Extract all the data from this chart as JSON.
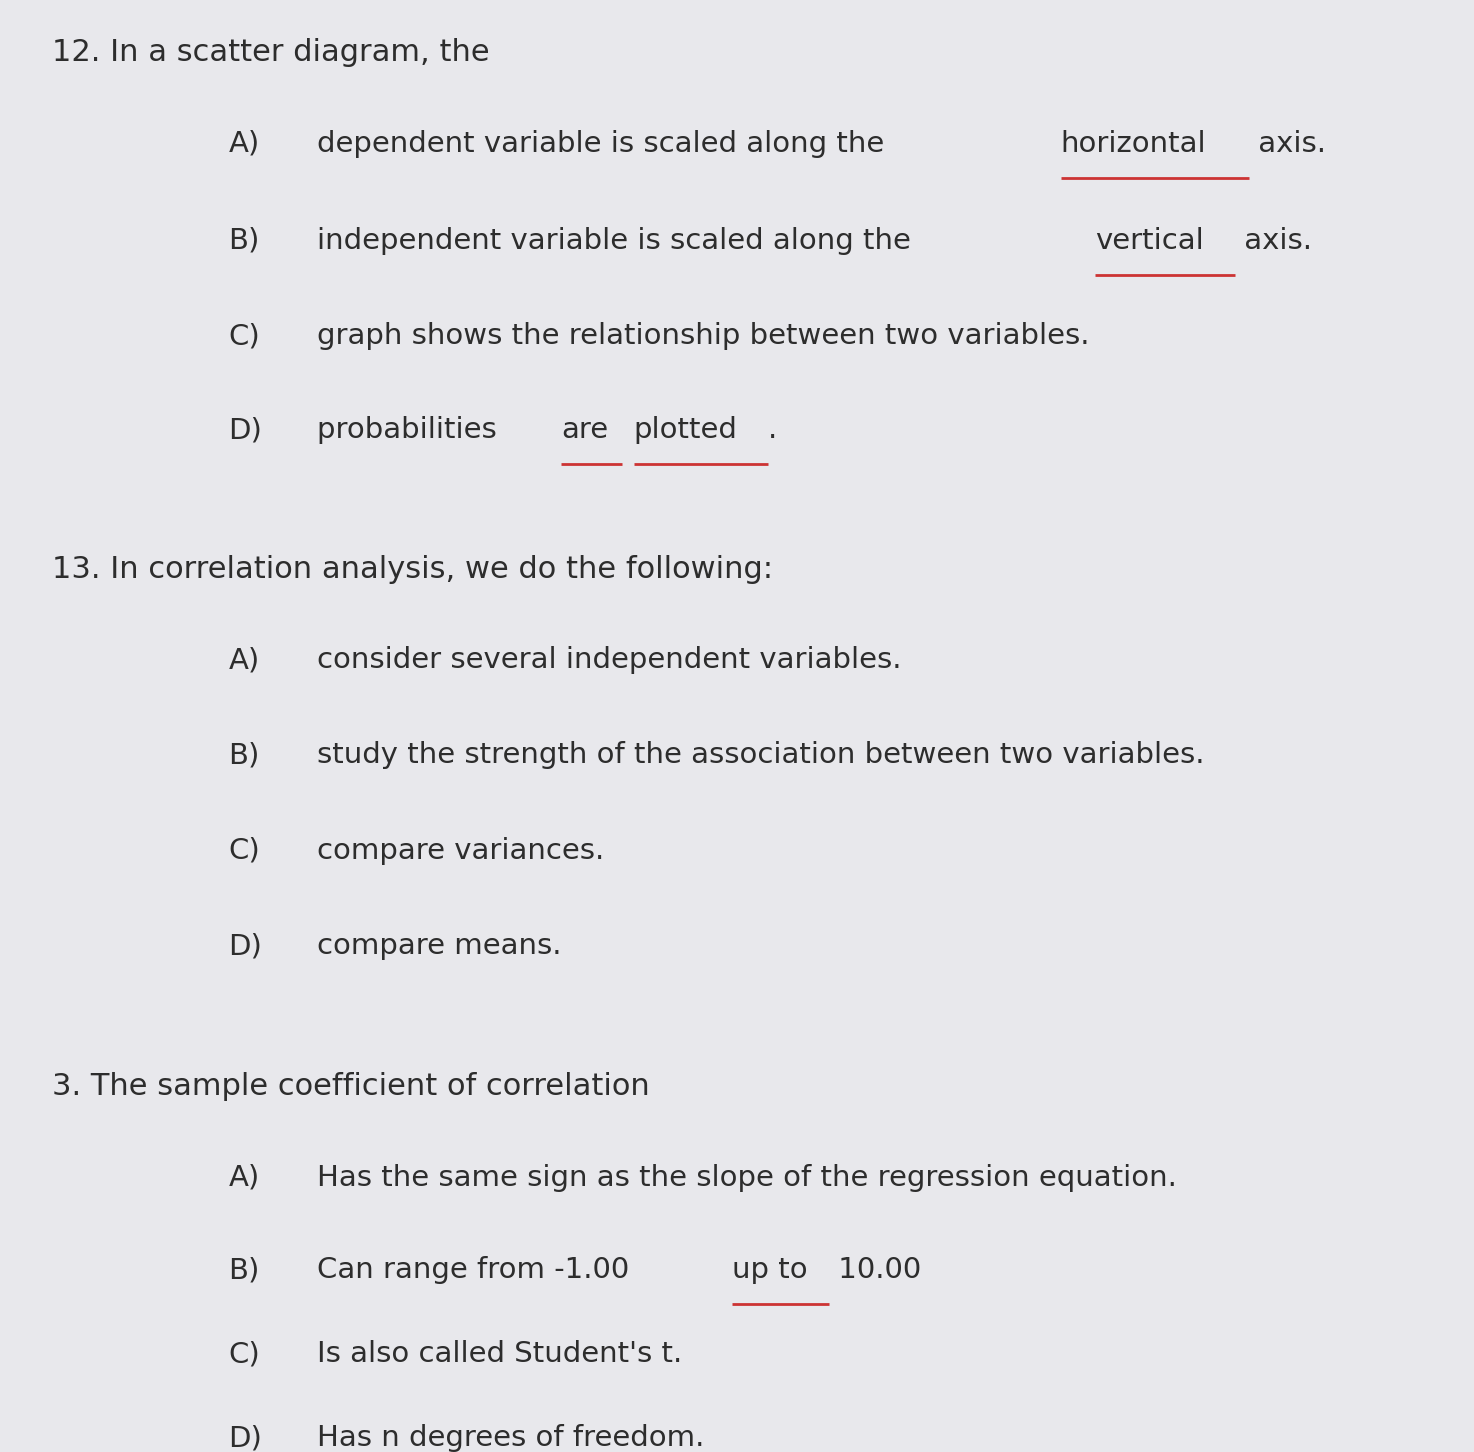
{
  "background_color": "#e8e8ec",
  "text_color": "#2d2d2d",
  "underline_color": "#cc3333",
  "font_size_question": 22,
  "font_size_option": 21,
  "questions": [
    {
      "number": "12.",
      "stem": " In a scatter diagram, the",
      "options": [
        {
          "letter": "A)",
          "parts": [
            {
              "text": "dependent variable is scaled along the ",
              "underline": false
            },
            {
              "text": "horizontal",
              "underline": true
            },
            {
              "text": " axis.",
              "underline": false
            }
          ]
        },
        {
          "letter": "B)",
          "parts": [
            {
              "text": "independent variable is scaled along the ",
              "underline": false
            },
            {
              "text": "vertical",
              "underline": true
            },
            {
              "text": " axis.",
              "underline": false
            }
          ]
        },
        {
          "letter": "C)",
          "parts": [
            {
              "text": "graph shows the relationship between two variables.",
              "underline": false
            }
          ]
        },
        {
          "letter": "D)",
          "parts": [
            {
              "text": "probabilities ",
              "underline": false
            },
            {
              "text": "are",
              "underline": true
            },
            {
              "text": " ",
              "underline": false
            },
            {
              "text": "plotted",
              "underline": true
            },
            {
              "text": ".",
              "underline": false
            }
          ]
        }
      ]
    },
    {
      "number": "13.",
      "stem": " In correlation analysis, we do the following:",
      "options": [
        {
          "letter": "A)",
          "parts": [
            {
              "text": "consider several independent variables.",
              "underline": false
            }
          ]
        },
        {
          "letter": "B)",
          "parts": [
            {
              "text": "study the strength of the association between two variables.",
              "underline": false
            }
          ]
        },
        {
          "letter": "C)",
          "parts": [
            {
              "text": "compare variances.",
              "underline": false
            }
          ]
        },
        {
          "letter": "D)",
          "parts": [
            {
              "text": "compare means.",
              "underline": false
            }
          ]
        }
      ]
    },
    {
      "number": "3.",
      "stem": " The sample coefficient of correlation",
      "options": [
        {
          "letter": "A)",
          "parts": [
            {
              "text": "Has the same sign as the slope of the regression equation.",
              "underline": false
            }
          ]
        },
        {
          "letter": "B)",
          "parts": [
            {
              "text": "Can range from -1.00 ",
              "underline": false
            },
            {
              "text": "up to",
              "underline": true
            },
            {
              "text": " 10.00",
              "underline": false
            }
          ]
        },
        {
          "letter": "C)",
          "parts": [
            {
              "text": "Is also called Student's t.",
              "underline": false
            }
          ]
        },
        {
          "letter": "D)",
          "parts": [
            {
              "text": "Has n degrees of freedom.",
              "underline": false
            }
          ]
        }
      ]
    }
  ]
}
